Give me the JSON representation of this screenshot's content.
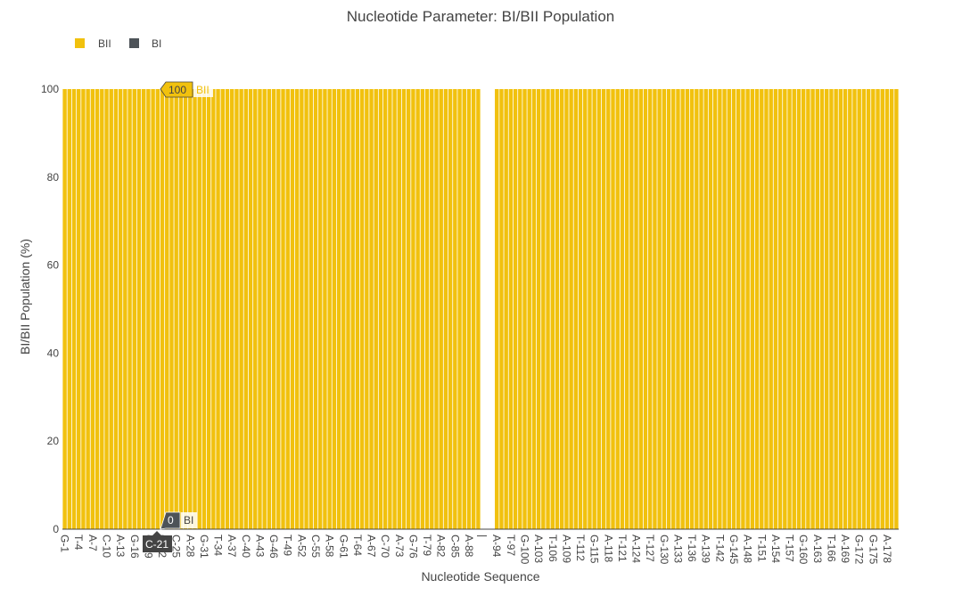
{
  "chart_data": {
    "type": "bar",
    "barmode": "stack",
    "title": "Nucleotide Parameter: BI/BII Population",
    "xlabel": "Nucleotide Sequence",
    "ylabel": "BI/BII Population (%)",
    "ylim": [
      0,
      100
    ],
    "yticks": [
      0,
      20,
      40,
      60,
      80,
      100
    ],
    "grid": false,
    "legend_position": "top-left",
    "categories": [
      "G-1",
      "T-4",
      "A-7",
      "C-10",
      "A-13",
      "G-16",
      "G-19",
      "C-22",
      "C-25",
      "A-28",
      "G-31",
      "T-34",
      "A-37",
      "C-40",
      "A-43",
      "G-46",
      "T-49",
      "A-52",
      "C-55",
      "A-58",
      "G-61",
      "T-64",
      "A-67",
      "C-70",
      "A-73",
      "G-76",
      "T-79",
      "A-82",
      "C-85",
      "A-88",
      "|",
      "A-94",
      "T-97",
      "G-100",
      "A-103",
      "T-106",
      "A-109",
      "T-112",
      "G-115",
      "A-118",
      "T-121",
      "A-124",
      "T-127",
      "G-130",
      "A-133",
      "T-136",
      "A-139",
      "T-142",
      "G-145",
      "A-148",
      "T-151",
      "A-154",
      "T-157",
      "G-160",
      "A-163",
      "T-166",
      "A-169",
      "G-172",
      "G-175",
      "A-178"
    ],
    "series": [
      {
        "name": "BII",
        "color": "#f1c10e",
        "value_all": 100
      },
      {
        "name": "BI",
        "color": "#4d5358",
        "value_all": 0
      }
    ],
    "gap_after_category": "A-88",
    "hover": {
      "category": "C-21",
      "bii_value": "100",
      "bii_name": "BII",
      "bi_value": "0",
      "bi_name": "BI"
    }
  }
}
